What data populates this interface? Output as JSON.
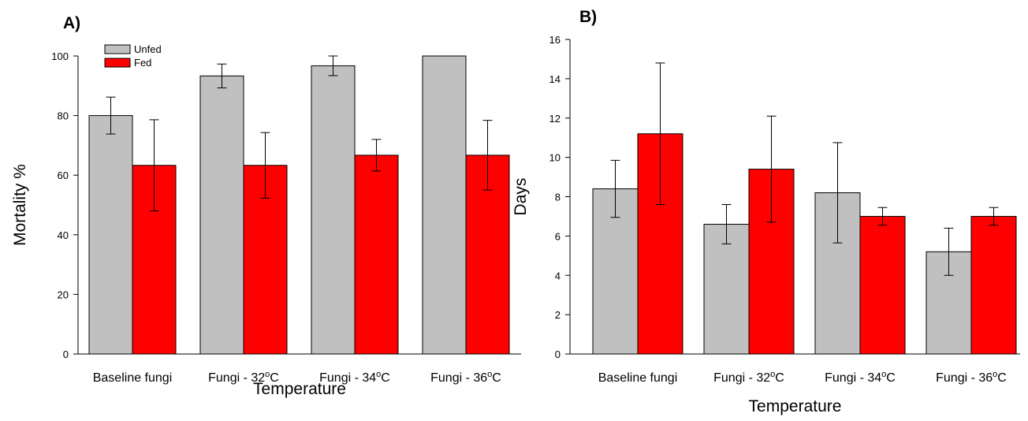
{
  "chart_data": [
    {
      "type": "bar",
      "panel_label": "A)",
      "categories": [
        "Baseline fungi",
        "Fungi - 32°C",
        "Fungi - 34°C",
        "Fungi - 36°C"
      ],
      "category_parts": [
        {
          "main": "Baseline fungi",
          "sup": "",
          "tail": ""
        },
        {
          "main": "Fungi - 32",
          "sup": "o",
          "tail": "C"
        },
        {
          "main": "Fungi - 34",
          "sup": "o",
          "tail": "C"
        },
        {
          "main": "Fungi - 36",
          "sup": "o",
          "tail": "C"
        }
      ],
      "series": [
        {
          "name": "Unfed",
          "values": [
            80,
            93.3,
            96.7,
            100
          ],
          "errors": [
            6.2,
            4.0,
            3.3,
            0
          ],
          "color": "#c0c0c0"
        },
        {
          "name": "Fed",
          "values": [
            63.3,
            63.3,
            66.7,
            66.7
          ],
          "errors": [
            15.3,
            11.0,
            5.3,
            11.7
          ],
          "color": "#ff0000"
        }
      ],
      "xlabel": "Temperature",
      "ylabel": "Mortality %",
      "ylim": [
        0,
        100
      ],
      "yticks": [
        0,
        20,
        40,
        60,
        80,
        100
      ],
      "legend": "top-left",
      "grid": false
    },
    {
      "type": "bar",
      "panel_label": "B)",
      "categories": [
        "Baseline fungi",
        "Fungi - 32°C",
        "Fungi - 34°C",
        "Fungi - 36°C"
      ],
      "category_parts": [
        {
          "main": "Baseline fungi",
          "sup": "",
          "tail": ""
        },
        {
          "main": "Fungi - 32",
          "sup": "o",
          "tail": "C"
        },
        {
          "main": "Fungi - 34",
          "sup": "o",
          "tail": "C"
        },
        {
          "main": "Fungi - 36",
          "sup": "o",
          "tail": "C"
        }
      ],
      "series": [
        {
          "name": "Unfed",
          "values": [
            8.4,
            6.6,
            8.2,
            5.2
          ],
          "errors": [
            1.45,
            1.0,
            2.55,
            1.2
          ],
          "color": "#c0c0c0"
        },
        {
          "name": "Fed",
          "values": [
            11.2,
            9.4,
            7.0,
            7.0
          ],
          "errors": [
            3.6,
            2.7,
            0.45,
            0.45
          ],
          "color": "#ff0000"
        }
      ],
      "xlabel": "Temperature",
      "ylabel": "Days",
      "ylim": [
        0,
        16
      ],
      "yticks": [
        0,
        2,
        4,
        6,
        8,
        10,
        12,
        14,
        16
      ],
      "legend": "none",
      "grid": false
    }
  ]
}
